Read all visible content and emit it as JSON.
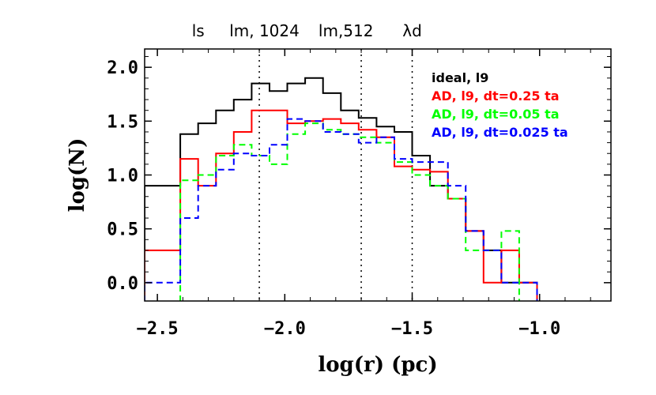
{
  "chart_data": {
    "type": "histogram-step",
    "xlabel": "log(r)  (pc)",
    "ylabel": "log(N)",
    "xlim": [
      -2.55,
      -0.72
    ],
    "ylim": [
      -0.17,
      2.17
    ],
    "xticks": [
      -2.5,
      -2.0,
      -1.5,
      -1.0
    ],
    "xtick_labels": [
      "−2.5",
      "−2.0",
      "−1.5",
      "−1.0"
    ],
    "yticks": [
      0.0,
      0.5,
      1.0,
      1.5,
      2.0
    ],
    "ytick_labels": [
      "0.0",
      "0.5",
      "1.0",
      "1.5",
      "2.0"
    ],
    "vlines": [
      -2.1,
      -1.7,
      -1.5
    ],
    "top_labels": [
      {
        "text": "ls",
        "x": -2.34
      },
      {
        "text": "lm, 1024",
        "x": -2.08
      },
      {
        "text": "lm,512",
        "x": -1.76
      },
      {
        "text": "λd",
        "x": -1.5
      }
    ],
    "bin_edges": [
      -2.55,
      -2.48,
      -2.41,
      -2.34,
      -2.27,
      -2.2,
      -2.13,
      -2.06,
      -1.99,
      -1.92,
      -1.85,
      -1.78,
      -1.71,
      -1.64,
      -1.57,
      -1.5,
      -1.43,
      -1.36,
      -1.29,
      -1.22,
      -1.15,
      -1.08,
      -1.01
    ],
    "series": [
      {
        "name": "ideal, l9",
        "color": "#000000",
        "dash": "solid",
        "values": [
          0.9,
          0.9,
          1.38,
          1.48,
          1.6,
          1.7,
          1.85,
          1.78,
          1.85,
          1.9,
          1.76,
          1.6,
          1.53,
          1.45,
          1.4,
          1.18,
          0.9,
          0.78,
          0.48,
          0.3,
          0.0,
          0.0,
          null
        ]
      },
      {
        "name": "AD, l9, dt=0.25 ta",
        "color": "#ff0000",
        "dash": "solid",
        "values": [
          0.3,
          0.3,
          1.15,
          0.9,
          1.2,
          1.4,
          1.6,
          1.6,
          1.48,
          1.5,
          1.52,
          1.48,
          1.42,
          1.35,
          1.08,
          1.05,
          1.03,
          0.78,
          0.48,
          0.0,
          0.3,
          0.0,
          null
        ]
      },
      {
        "name": "AD, l9, dt=0.05 ta",
        "color": "#00ff00",
        "dash": "dashed",
        "values": [
          null,
          null,
          0.95,
          1.0,
          1.18,
          1.28,
          1.18,
          1.1,
          1.38,
          1.48,
          1.42,
          1.38,
          1.35,
          1.3,
          1.12,
          1.0,
          0.9,
          0.78,
          0.3,
          0.3,
          0.48,
          null,
          null
        ]
      },
      {
        "name": "AD, l9, dt=0.025 ta",
        "color": "#0000ff",
        "dash": "dashed",
        "values": [
          0.0,
          0.0,
          0.6,
          0.9,
          1.05,
          1.2,
          1.18,
          1.28,
          1.52,
          1.5,
          1.4,
          1.38,
          1.3,
          1.35,
          1.15,
          1.12,
          1.12,
          0.9,
          0.48,
          0.3,
          0.0,
          0.0,
          null
        ]
      }
    ],
    "legend_position": "top-right"
  }
}
